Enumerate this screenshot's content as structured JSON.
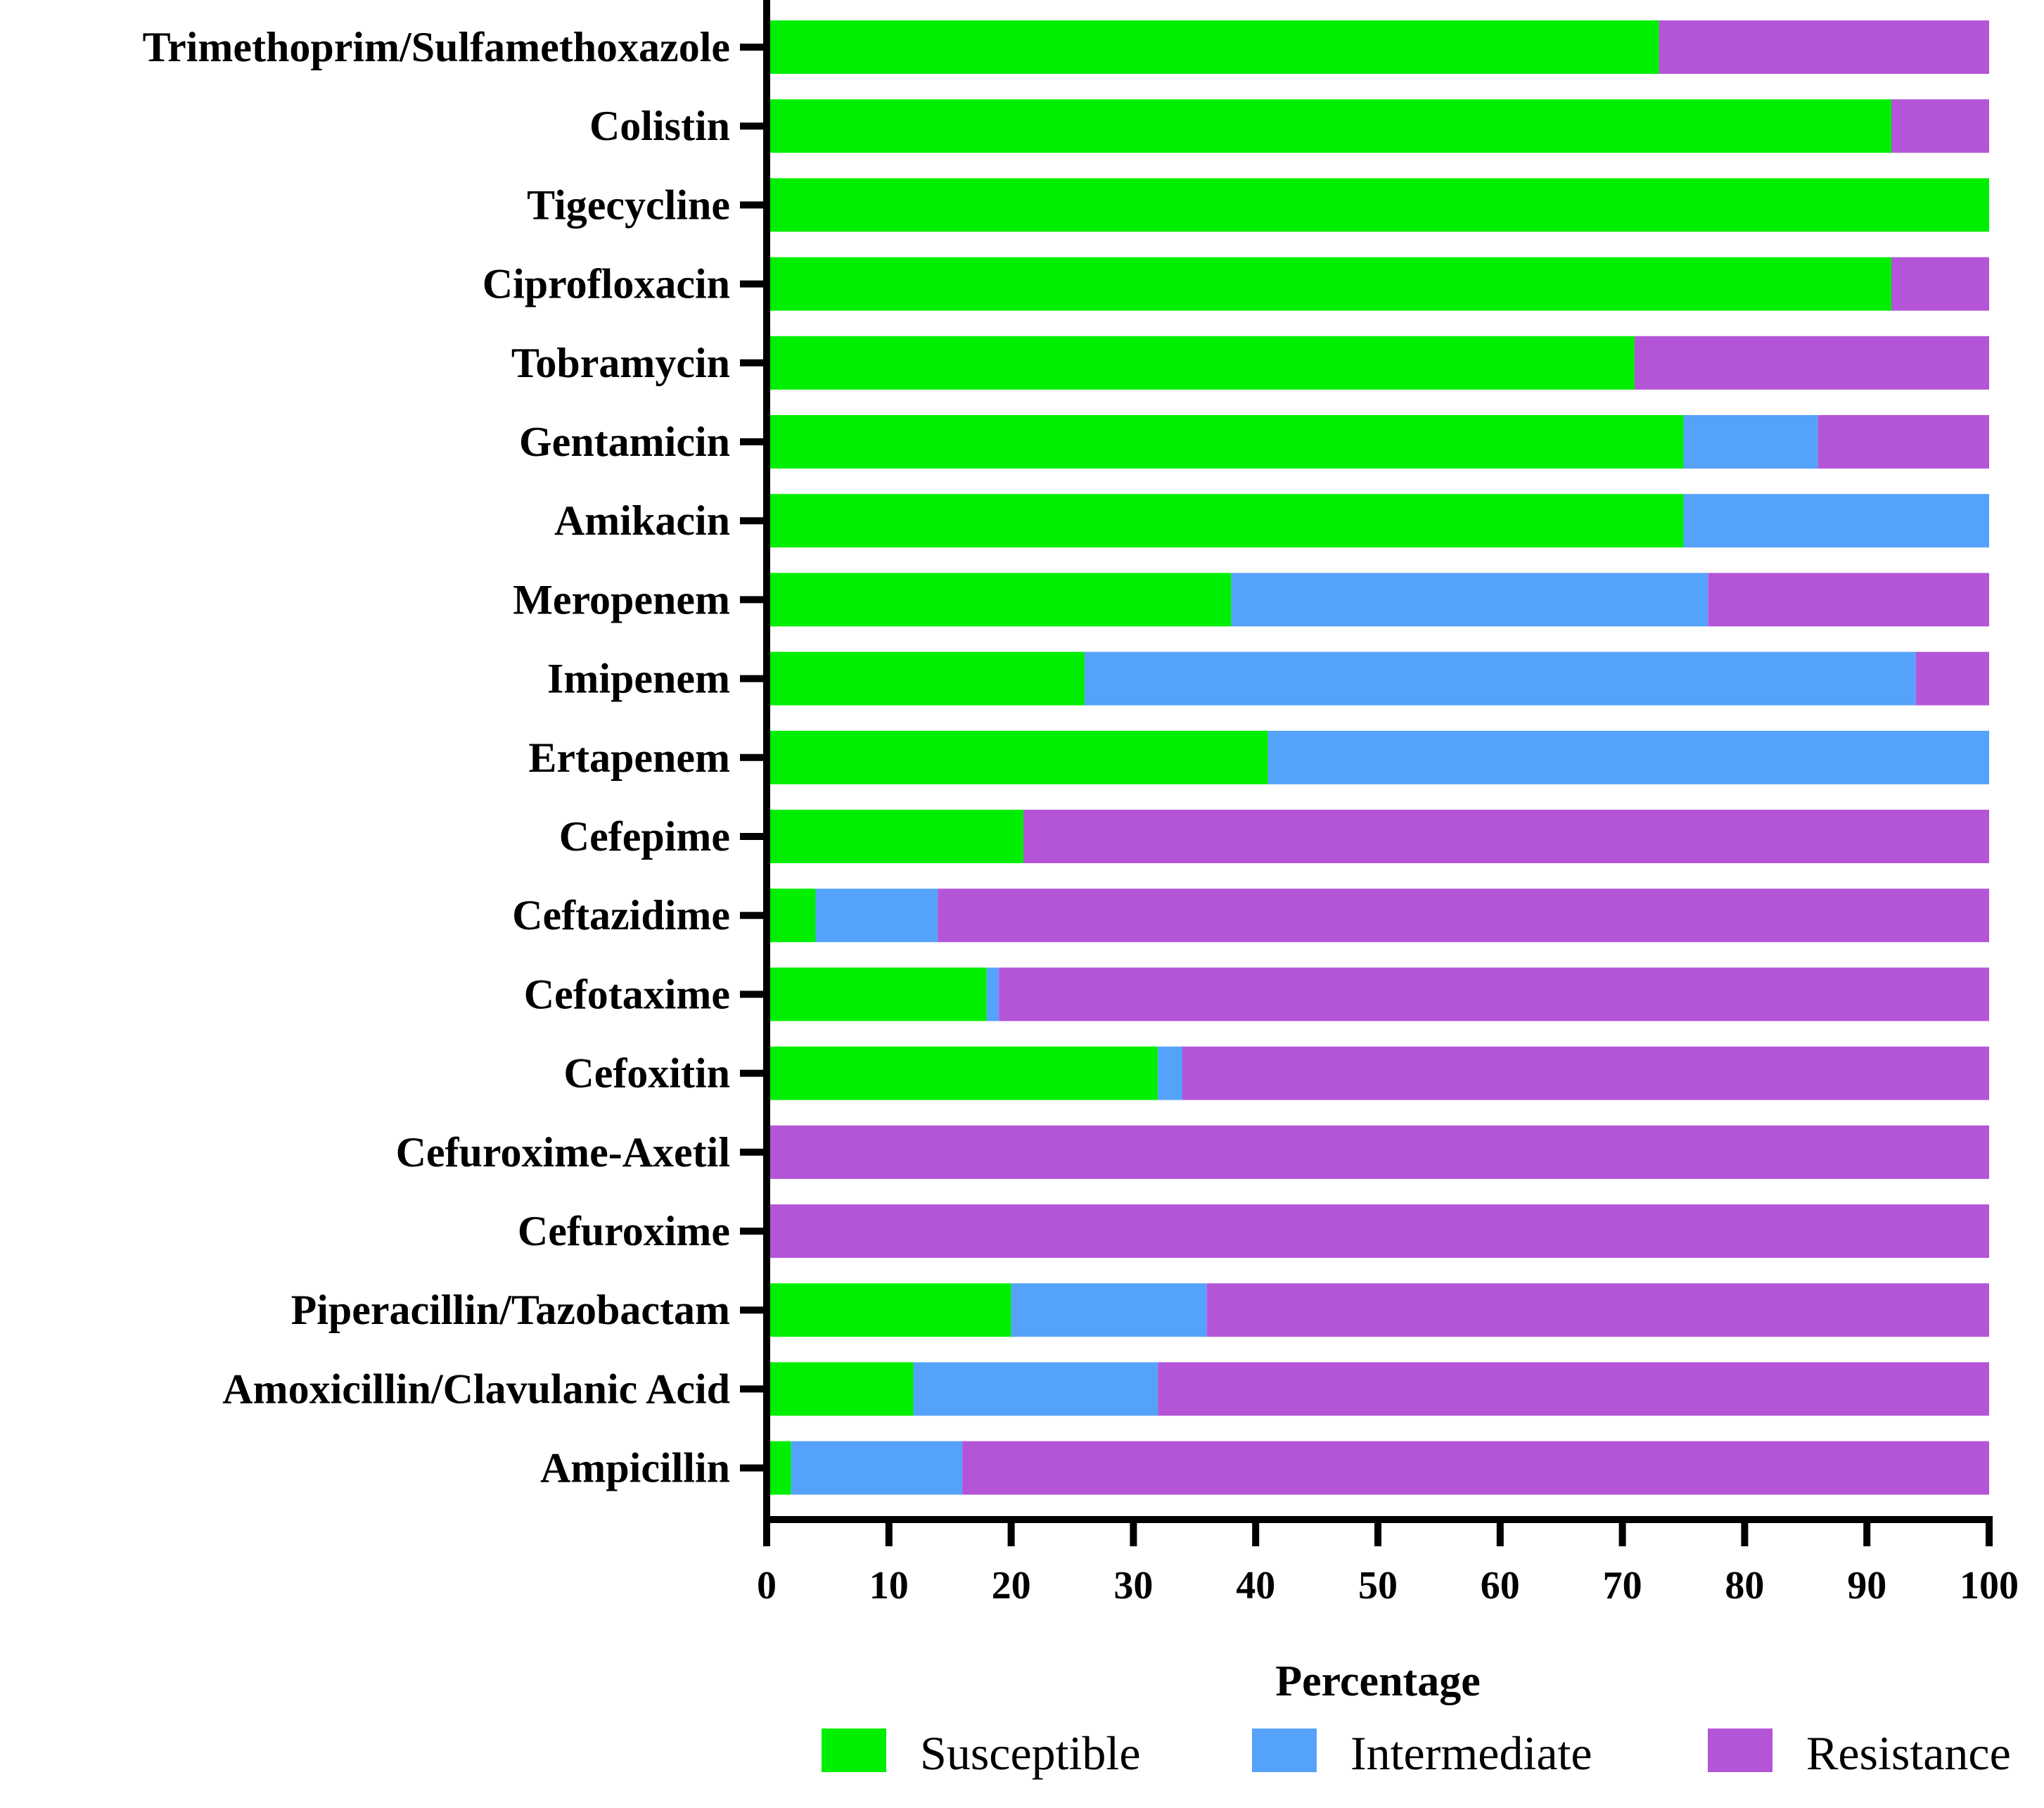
{
  "chart_data": {
    "type": "bar",
    "orientation": "horizontal",
    "stacked": true,
    "title": "",
    "xlabel": "Percentage",
    "ylabel": "",
    "xlim": [
      0,
      100
    ],
    "xticks": [
      0,
      10,
      20,
      30,
      40,
      50,
      60,
      70,
      80,
      90,
      100
    ],
    "grid": false,
    "legend_position": "bottom",
    "categories": [
      "Trimethoprim/Sulfamethoxazole",
      "Colistin",
      "Tigecycline",
      "Ciprofloxacin",
      "Tobramycin",
      "Gentamicin",
      "Amikacin",
      "Meropenem",
      "Imipenem",
      "Ertapenem",
      "Cefepime",
      "Ceftazidime",
      "Cefotaxime",
      "Cefoxitin",
      "Cefuroxime-Axetil",
      "Cefuroxime",
      "Piperacillin/Tazobactam",
      "Amoxicillin/Clavulanic Acid",
      "Ampicillin"
    ],
    "series": [
      {
        "name": "Susceptible",
        "color": "#00ee00",
        "values": [
          73,
          92,
          100,
          92,
          71,
          75,
          75,
          38,
          26,
          41,
          21,
          4,
          18,
          32,
          0,
          0,
          20,
          12,
          2
        ]
      },
      {
        "name": "Intermediate",
        "color": "#55a2fb",
        "values": [
          0,
          0,
          0,
          0,
          0,
          11,
          25,
          39,
          68,
          59,
          0,
          10,
          1,
          2,
          0,
          0,
          16,
          20,
          14
        ]
      },
      {
        "name": "Resistance",
        "color": "#b455d8",
        "values": [
          27,
          8,
          0,
          8,
          29,
          14,
          0,
          23,
          6,
          0,
          79,
          86,
          81,
          66,
          100,
          100,
          64,
          68,
          84
        ]
      }
    ]
  }
}
